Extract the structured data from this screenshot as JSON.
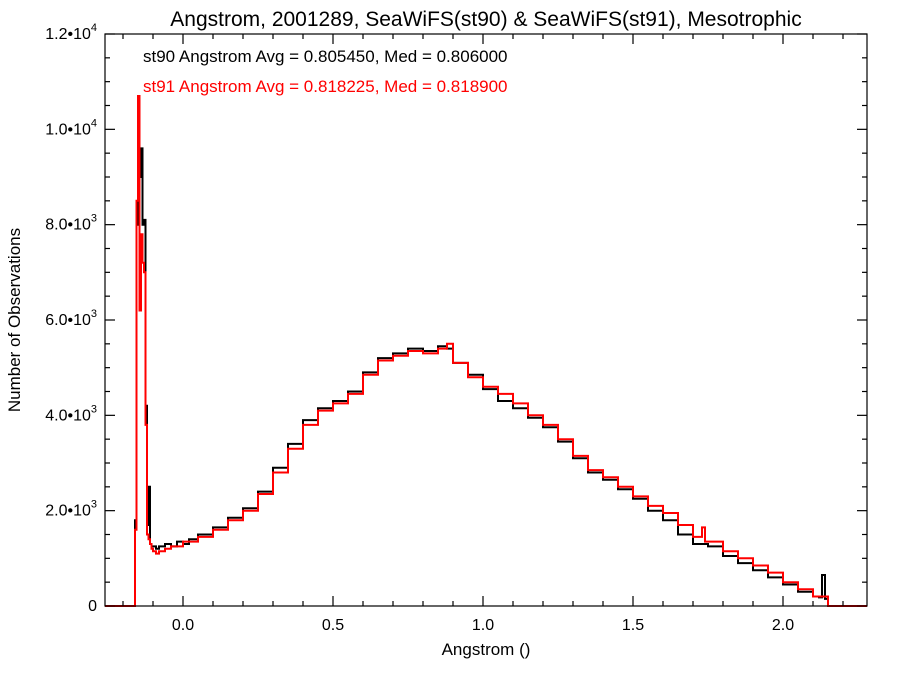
{
  "chart_data": {
    "type": "line",
    "title": "Angstrom, 2001289, SeaWiFS(st90) & SeaWiFS(st91), Mesotrophic",
    "xlabel": "Angstrom ()",
    "ylabel": "Number of Observations",
    "xlim": [
      -0.26,
      2.28
    ],
    "ylim": [
      0,
      12000
    ],
    "grid": false,
    "step": true,
    "x_ticks": [
      {
        "value": 0.0,
        "label": "0.0"
      },
      {
        "value": 0.5,
        "label": "0.5"
      },
      {
        "value": 1.0,
        "label": "1.0"
      },
      {
        "value": 1.5,
        "label": "1.5"
      },
      {
        "value": 2.0,
        "label": "2.0"
      }
    ],
    "y_ticks": [
      {
        "value": 0,
        "base": "0",
        "exp": ""
      },
      {
        "value": 2000,
        "base": "2.0•10",
        "exp": "3"
      },
      {
        "value": 4000,
        "base": "4.0•10",
        "exp": "3"
      },
      {
        "value": 6000,
        "base": "6.0•10",
        "exp": "3"
      },
      {
        "value": 8000,
        "base": "8.0•10",
        "exp": "3"
      },
      {
        "value": 10000,
        "base": "1.0•10",
        "exp": "4"
      },
      {
        "value": 12000,
        "base": "1.2•10",
        "exp": "4"
      }
    ],
    "annotations": [
      {
        "text": "st90 Angstrom Avg = 0.805450, Med = 0.806000",
        "color": "#000000"
      },
      {
        "text": "st91 Angstrom Avg = 0.818225, Med = 0.818900",
        "color": "#ff0000"
      }
    ],
    "series": [
      {
        "color": "#000000",
        "x": [
          -0.26,
          -0.17,
          -0.16,
          -0.155,
          -0.15,
          -0.145,
          -0.14,
          -0.135,
          -0.13,
          -0.125,
          -0.12,
          -0.115,
          -0.11,
          -0.105,
          -0.1,
          -0.09,
          -0.08,
          -0.06,
          -0.04,
          -0.02,
          0.0,
          0.02,
          0.05,
          0.1,
          0.15,
          0.2,
          0.25,
          0.3,
          0.35,
          0.4,
          0.45,
          0.5,
          0.55,
          0.6,
          0.65,
          0.7,
          0.75,
          0.8,
          0.85,
          0.88,
          0.9,
          0.95,
          1.0,
          1.05,
          1.1,
          1.15,
          1.2,
          1.25,
          1.3,
          1.35,
          1.4,
          1.45,
          1.5,
          1.55,
          1.6,
          1.65,
          1.7,
          1.75,
          1.8,
          1.85,
          1.9,
          1.95,
          2.0,
          2.05,
          2.1,
          2.12,
          2.13,
          2.14,
          2.15,
          2.28
        ],
        "values": [
          0,
          0,
          1800,
          8000,
          10700,
          9000,
          9600,
          8000,
          8100,
          4200,
          1700,
          2500,
          1300,
          1250,
          1250,
          1200,
          1250,
          1300,
          1250,
          1350,
          1300,
          1400,
          1500,
          1650,
          1850,
          2050,
          2400,
          2900,
          3400,
          3900,
          4150,
          4300,
          4500,
          4900,
          5200,
          5300,
          5400,
          5350,
          5450,
          5400,
          5100,
          4850,
          4550,
          4300,
          4150,
          3950,
          3750,
          3450,
          3100,
          2800,
          2650,
          2450,
          2250,
          2000,
          1800,
          1500,
          1300,
          1250,
          1050,
          900,
          750,
          600,
          450,
          300,
          200,
          180,
          650,
          150,
          0,
          0
        ]
      },
      {
        "color": "#ff0000",
        "x": [
          -0.26,
          -0.17,
          -0.16,
          -0.155,
          -0.15,
          -0.145,
          -0.14,
          -0.135,
          -0.13,
          -0.125,
          -0.12,
          -0.115,
          -0.11,
          -0.105,
          -0.1,
          -0.09,
          -0.08,
          -0.06,
          -0.04,
          -0.02,
          0.0,
          0.02,
          0.05,
          0.1,
          0.15,
          0.2,
          0.25,
          0.3,
          0.35,
          0.4,
          0.45,
          0.5,
          0.55,
          0.6,
          0.65,
          0.7,
          0.75,
          0.8,
          0.85,
          0.88,
          0.9,
          0.95,
          1.0,
          1.05,
          1.1,
          1.15,
          1.2,
          1.25,
          1.3,
          1.35,
          1.4,
          1.45,
          1.5,
          1.55,
          1.6,
          1.65,
          1.7,
          1.73,
          1.74,
          1.75,
          1.8,
          1.85,
          1.9,
          1.95,
          2.0,
          2.05,
          2.1,
          2.15,
          2.28
        ],
        "values": [
          0,
          0,
          1600,
          8500,
          10700,
          6200,
          7800,
          7200,
          7000,
          3800,
          1500,
          1400,
          1300,
          1200,
          1150,
          1100,
          1150,
          1200,
          1250,
          1250,
          1350,
          1350,
          1450,
          1600,
          1800,
          2000,
          2350,
          2800,
          3300,
          3800,
          4100,
          4250,
          4450,
          4850,
          5150,
          5250,
          5350,
          5300,
          5400,
          5500,
          5100,
          4800,
          4600,
          4450,
          4250,
          4000,
          3800,
          3500,
          3150,
          2850,
          2700,
          2500,
          2300,
          2100,
          1950,
          1700,
          1450,
          1650,
          1350,
          1350,
          1150,
          1000,
          850,
          700,
          500,
          350,
          200,
          0,
          0
        ]
      }
    ]
  }
}
